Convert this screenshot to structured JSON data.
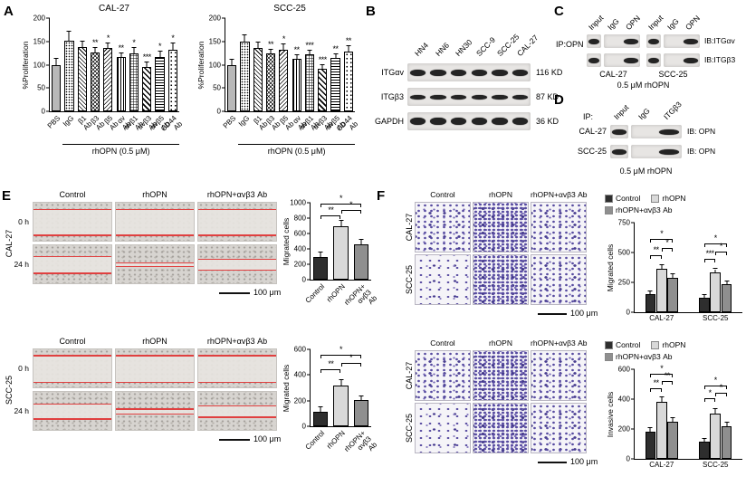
{
  "panels": {
    "A": {
      "label": "A"
    },
    "B": {
      "label": "B",
      "lanes": [
        "HN4",
        "HN6",
        "HN30",
        "SCC-9",
        "SCC-25",
        "CAL-27"
      ],
      "rows": [
        {
          "name": "ITGαv",
          "size": "116 KD",
          "band_h": 7
        },
        {
          "name": "ITGβ3",
          "size": "87 KD",
          "band_h": 5
        },
        {
          "name": "GAPDH",
          "size": "36 KD",
          "band_h": 8
        }
      ]
    },
    "C": {
      "label": "C",
      "ip_label": "IP:OPN",
      "lanes": [
        "Input",
        "IgG",
        "OPN"
      ],
      "groups": [
        "CAL-27",
        "SCC-25"
      ],
      "rows": [
        {
          "ib": "IB:ITGαv"
        },
        {
          "ib": "IB:ITGβ3"
        }
      ],
      "caption": "0.5 μM rhOPN"
    },
    "D": {
      "label": "D",
      "ip_label": "IP:",
      "lanes": [
        "Input",
        "IgG",
        "ITGβ3"
      ],
      "rows": [
        {
          "name": "CAL-27",
          "ib": "IB: OPN"
        },
        {
          "name": "SCC-25",
          "ib": "IB: OPN"
        }
      ],
      "caption": "0.5 μM rhOPN"
    },
    "E": {
      "label": "E",
      "col_headers": [
        "Control",
        "rhOPN",
        "rhOPN+αvβ3 Ab"
      ],
      "scale_label": "100 μm",
      "blocks": [
        {
          "cell_line": "CAL-27",
          "rows": [
            {
              "label": "0 h",
              "lines": [
                [
                  16,
                  84
                ],
                [
                  16,
                  84
                ],
                [
                  16,
                  84
                ]
              ]
            },
            {
              "label": "24 h",
              "lines": [
                [
                  28,
                  72
                ],
                [
                  45,
                  55
                ],
                [
                  36,
                  64
                ]
              ]
            }
          ]
        },
        {
          "cell_line": "SCC-25",
          "rows": [
            {
              "label": "0 h",
              "lines": [
                [
                  15,
                  85
                ],
                [
                  15,
                  85
                ],
                [
                  15,
                  85
                ]
              ]
            },
            {
              "label": "24 h",
              "lines": [
                [
                  30,
                  70
                ],
                [
                  44,
                  56
                ],
                [
                  35,
                  65
                ]
              ]
            }
          ]
        }
      ]
    },
    "F": {
      "label": "F",
      "col_headers": [
        "Control",
        "rhOPN",
        "rhOPN+αvβ3 Ab"
      ],
      "scale_label": "100 μm",
      "legend": [
        {
          "label": "Control",
          "color": "#2e2e2e"
        },
        {
          "label": "rhOPN",
          "color": "#d9d9d9"
        },
        {
          "label": "rhOPN+αvβ3 Ab",
          "color": "#8f8f8f"
        }
      ],
      "blocks": [
        {
          "assay": "migration",
          "rows": [
            {
              "cell_line": "CAL-27",
              "density": [
                "med",
                "high",
                "med"
              ]
            },
            {
              "cell_line": "SCC-25",
              "density": [
                "low",
                "high",
                "med"
              ]
            }
          ]
        },
        {
          "assay": "invasion",
          "rows": [
            {
              "cell_line": "CAL-27",
              "density": [
                "med",
                "high",
                "med"
              ]
            },
            {
              "cell_line": "SCC-25",
              "density": [
                "low",
                "high",
                "med"
              ]
            }
          ]
        }
      ]
    }
  },
  "style_colors": {
    "wound_line": "#e04040",
    "crystal_violet_stain": "#564aa0",
    "blot_band": "#242424"
  },
  "chart_data": [
    {
      "id": "proliferation-cal27",
      "type": "bar",
      "title": "CAL-27",
      "ylabel": "%Proliferation",
      "ylim": [
        0,
        200
      ],
      "yticks": [
        0,
        50,
        100,
        150,
        200
      ],
      "categories": [
        "PBS",
        "IgG",
        "β1 Ab",
        "β3 Ab",
        "β5 Ab",
        "αv Ab",
        "αvβ1 Ab",
        "αvβ3 Ab",
        "αvβ5 Ab",
        "CD44 Ab"
      ],
      "values": [
        100,
        152,
        138,
        126,
        136,
        116,
        125,
        96,
        117,
        132
      ],
      "errors": [
        12,
        18,
        12,
        10,
        10,
        8,
        10,
        8,
        12,
        14
      ],
      "sig": [
        "",
        "",
        "",
        "**",
        "*",
        "**",
        "*",
        "***",
        "*",
        "*"
      ],
      "patterns": true,
      "xrotate": true,
      "group": {
        "from": 1,
        "to": 9,
        "label": "rhOPN (0.5 μM)"
      },
      "pad": [
        38,
        16,
        4,
        76
      ]
    },
    {
      "id": "proliferation-scc25",
      "type": "bar",
      "title": "SCC-25",
      "ylabel": "%Proliferation",
      "ylim": [
        0,
        200
      ],
      "yticks": [
        0,
        50,
        100,
        150,
        200
      ],
      "categories": [
        "PBS",
        "IgG",
        "β1 Ab",
        "β3 Ab",
        "β5 Ab",
        "αv Ab",
        "αvβ1 Ab",
        "αvβ3 Ab",
        "αvβ5 Ab",
        "CD44 Ab"
      ],
      "values": [
        100,
        150,
        136,
        124,
        133,
        113,
        122,
        92,
        114,
        129
      ],
      "errors": [
        10,
        13,
        11,
        9,
        10,
        8,
        9,
        7,
        9,
        11
      ],
      "sig": [
        "",
        "",
        "",
        "**",
        "*",
        "**",
        "***",
        "***",
        "**",
        "**"
      ],
      "patterns": true,
      "xrotate": true,
      "group": {
        "from": 1,
        "to": 9,
        "label": "rhOPN (0.5 μM)"
      },
      "pad": [
        38,
        16,
        4,
        76
      ]
    },
    {
      "id": "wound-migrated-cal27",
      "type": "bar",
      "ylabel": "Migrated cells",
      "ylim": [
        0,
        1000
      ],
      "yticks": [
        0,
        200,
        400,
        600,
        800,
        1000
      ],
      "categories": [
        "Control",
        "rhOPN",
        "rhOPN+\nαvβ3 Ab"
      ],
      "values": [
        300,
        700,
        460
      ],
      "errors": [
        55,
        60,
        55
      ],
      "colors": [
        "#2e2e2e",
        "#d9d9d9",
        "#8f8f8f"
      ],
      "xrotate": true,
      "brackets": [
        {
          "a": 0,
          "b": 1,
          "y": 790,
          "label": "**"
        },
        {
          "a": 1,
          "b": 2,
          "y": 860,
          "label": "*"
        },
        {
          "a": 0,
          "b": 2,
          "y": 940,
          "label": "*"
        }
      ],
      "pad": [
        36,
        10,
        4,
        58
      ]
    },
    {
      "id": "wound-migrated-scc25",
      "type": "bar",
      "ylabel": "Migrated cells",
      "ylim": [
        0,
        600
      ],
      "yticks": [
        0,
        200,
        400,
        600
      ],
      "categories": [
        "Control",
        "rhOPN",
        "rhOPN+\nαvβ3 Ab"
      ],
      "values": [
        115,
        320,
        205
      ],
      "errors": [
        30,
        40,
        30
      ],
      "colors": [
        "#2e2e2e",
        "#d9d9d9",
        "#8f8f8f"
      ],
      "xrotate": true,
      "brackets": [
        {
          "a": 0,
          "b": 1,
          "y": 420,
          "label": "**"
        },
        {
          "a": 1,
          "b": 2,
          "y": 465,
          "label": "*"
        },
        {
          "a": 0,
          "b": 2,
          "y": 530,
          "label": "*"
        }
      ],
      "pad": [
        36,
        10,
        4,
        58
      ]
    },
    {
      "id": "transwell-migrated",
      "type": "grouped",
      "ylabel": "Migrated cells",
      "ylim": [
        0,
        750
      ],
      "yticks": [
        0,
        250,
        500,
        750
      ],
      "categories": [
        "CAL-27",
        "SCC-25"
      ],
      "series": [
        {
          "name": "Control",
          "color": "#2e2e2e",
          "values": [
            150,
            125
          ],
          "errors": [
            25,
            20
          ]
        },
        {
          "name": "rhOPN",
          "color": "#d9d9d9",
          "values": [
            360,
            330
          ],
          "errors": [
            35,
            30
          ]
        },
        {
          "name": "rhOPN+αvβ3 Ab",
          "color": "#8f8f8f",
          "values": [
            290,
            235
          ],
          "errors": [
            30,
            25
          ]
        }
      ],
      "brackets": [
        {
          "a": [
            0,
            0
          ],
          "b": [
            0,
            1
          ],
          "y": 450,
          "label": "**"
        },
        {
          "a": [
            0,
            1
          ],
          "b": [
            0,
            2
          ],
          "y": 510,
          "label": "*"
        },
        {
          "a": [
            0,
            0
          ],
          "b": [
            0,
            2
          ],
          "y": 580,
          "label": "*"
        },
        {
          "a": [
            1,
            0
          ],
          "b": [
            1,
            1
          ],
          "y": 415,
          "label": "***"
        },
        {
          "a": [
            1,
            1
          ],
          "b": [
            1,
            2
          ],
          "y": 475,
          "label": "*"
        },
        {
          "a": [
            1,
            0
          ],
          "b": [
            1,
            2
          ],
          "y": 545,
          "label": "*"
        }
      ],
      "pad": [
        38,
        4,
        2,
        16
      ]
    },
    {
      "id": "transwell-invasive",
      "type": "grouped",
      "ylabel": "Invasive cells",
      "ylim": [
        0,
        600
      ],
      "yticks": [
        0,
        200,
        400,
        600
      ],
      "categories": [
        "CAL-27",
        "SCC-25"
      ],
      "series": [
        {
          "name": "Control",
          "color": "#2e2e2e",
          "values": [
            180,
            115
          ],
          "errors": [
            25,
            20
          ]
        },
        {
          "name": "rhOPN",
          "color": "#d9d9d9",
          "values": [
            380,
            305
          ],
          "errors": [
            30,
            30
          ]
        },
        {
          "name": "rhOPN+αvβ3 Ab",
          "color": "#8f8f8f",
          "values": [
            250,
            220
          ],
          "errors": [
            25,
            25
          ]
        }
      ],
      "brackets": [
        {
          "a": [
            0,
            0
          ],
          "b": [
            0,
            1
          ],
          "y": 450,
          "label": "**"
        },
        {
          "a": [
            0,
            1
          ],
          "b": [
            0,
            2
          ],
          "y": 495,
          "label": "**"
        },
        {
          "a": [
            0,
            0
          ],
          "b": [
            0,
            2
          ],
          "y": 545,
          "label": "*"
        },
        {
          "a": [
            1,
            0
          ],
          "b": [
            1,
            1
          ],
          "y": 380,
          "label": "*"
        },
        {
          "a": [
            1,
            1
          ],
          "b": [
            1,
            2
          ],
          "y": 420,
          "label": "*"
        },
        {
          "a": [
            1,
            0
          ],
          "b": [
            1,
            2
          ],
          "y": 465,
          "label": "*"
        }
      ],
      "pad": [
        38,
        4,
        2,
        16
      ]
    }
  ]
}
